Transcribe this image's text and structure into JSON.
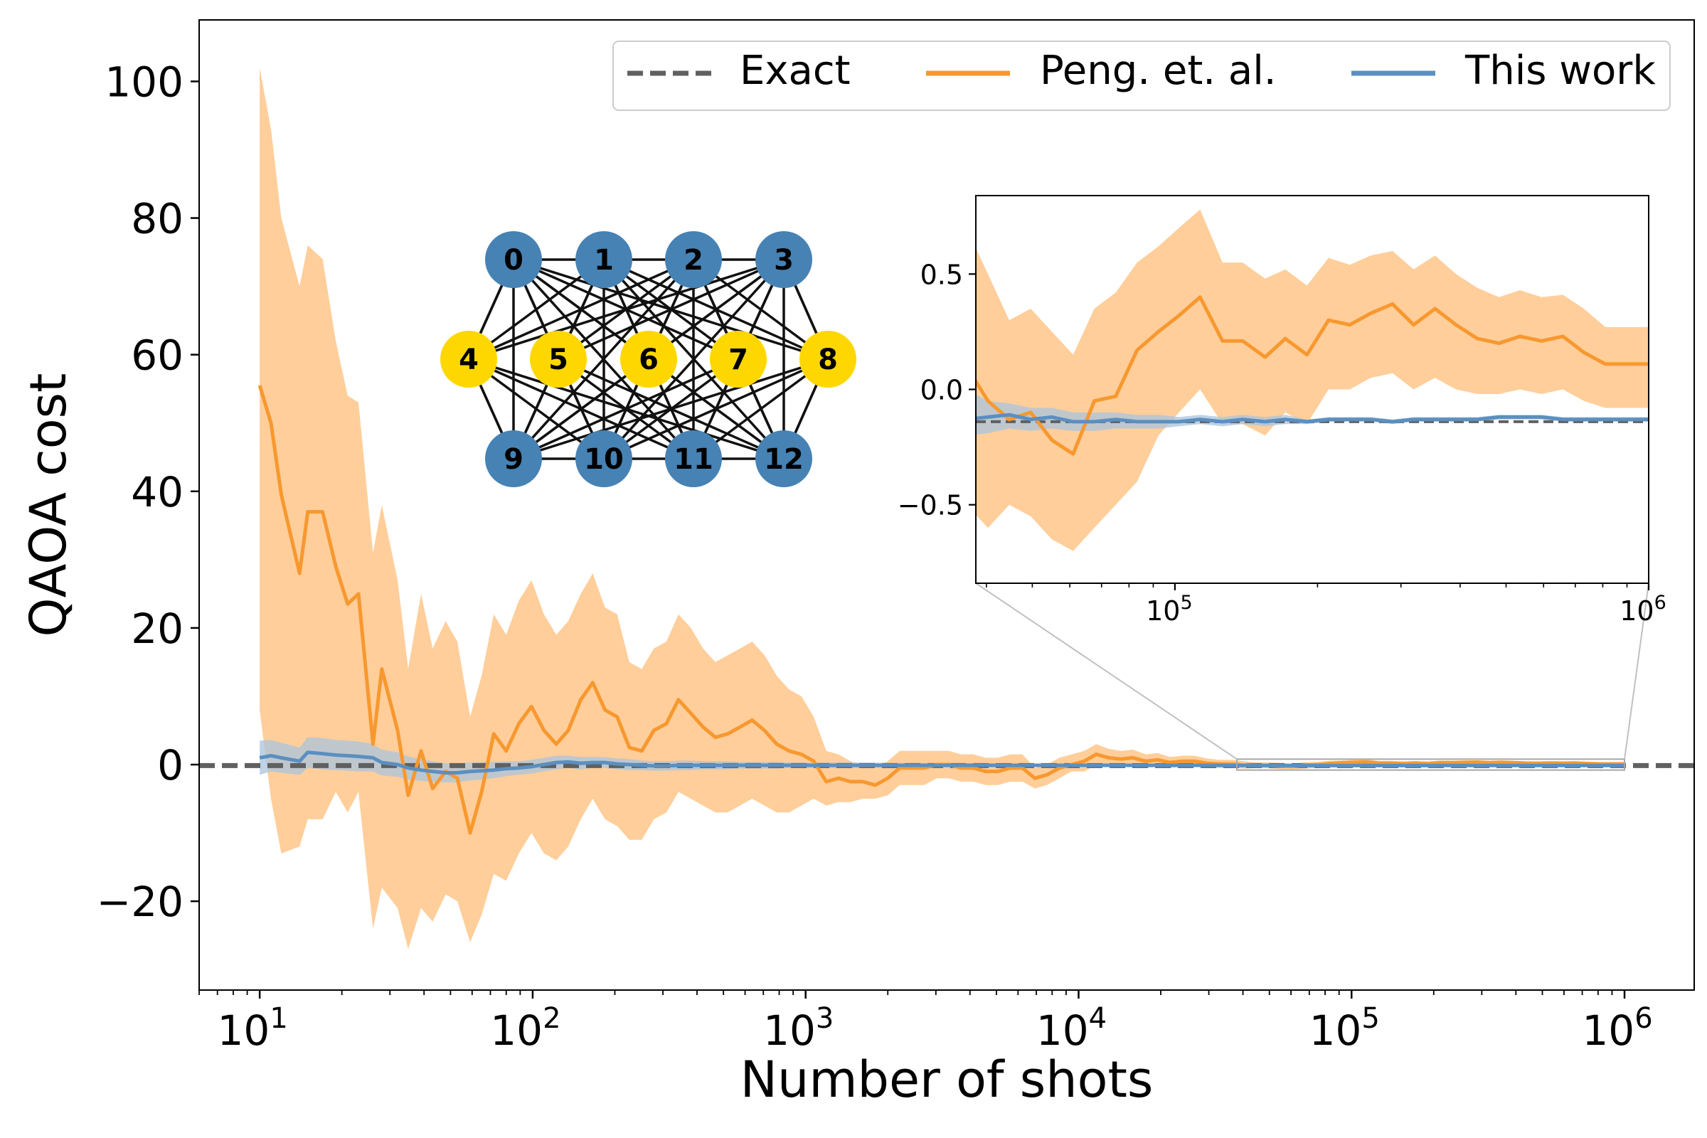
{
  "chart_data": {
    "type": "line",
    "xscale": "log",
    "xlabel": "Number of shots",
    "ylabel": "QAOA cost",
    "xlim": [
      6,
      1800000
    ],
    "ylim": [
      -33,
      109
    ],
    "yticks": [
      -20,
      0,
      20,
      40,
      60,
      80,
      100
    ],
    "ytick_labels": [
      "−20",
      "0",
      "20",
      "40",
      "60",
      "80",
      "100"
    ],
    "xticks_major": [
      {
        "value": 10,
        "base": "10",
        "exp": "1"
      },
      {
        "value": 100,
        "base": "10",
        "exp": "2"
      },
      {
        "value": 1000,
        "base": "10",
        "exp": "3"
      },
      {
        "value": 10000,
        "base": "10",
        "exp": "4"
      },
      {
        "value": 100000,
        "base": "10",
        "exp": "5"
      },
      {
        "value": 1000000,
        "base": "10",
        "exp": "6"
      }
    ],
    "legend": {
      "position": "top-right",
      "entries": [
        {
          "label": "Exact",
          "style": "dashed",
          "color": "#606060"
        },
        {
          "label": "Peng. et. al.",
          "style": "solid",
          "color": "#f7982f"
        },
        {
          "label": "This work",
          "style": "solid",
          "color": "#5b8fc0"
        }
      ]
    },
    "exact_value": -0.14,
    "series": [
      {
        "name": "Peng. et. al.",
        "color": "#f7982f",
        "band_color": "#ffc98f",
        "x": [
          10,
          11,
          12,
          14,
          15,
          17,
          19,
          21,
          23,
          26,
          28,
          32,
          35,
          39,
          43,
          48,
          53,
          59,
          65,
          72,
          80,
          89,
          99,
          110,
          122,
          135,
          150,
          166,
          184,
          204,
          226,
          251,
          278,
          309,
          342,
          380,
          421,
          467,
          518,
          575,
          637,
          707,
          784,
          870,
          965,
          1070,
          1190,
          1320,
          1460,
          1620,
          1800,
          2000,
          2210,
          2450,
          2720,
          3020,
          3350,
          3710,
          4120,
          4570,
          5060,
          5620,
          6230,
          6910,
          7660,
          8500,
          9430,
          10500,
          11600,
          12900,
          14300,
          15800,
          17600,
          19500,
          21600,
          24000,
          26600,
          29500,
          32700,
          36300,
          40300,
          44700,
          49600,
          55000,
          61000,
          67600,
          75000,
          83200,
          92300,
          102000,
          113000,
          126000,
          139000,
          155000,
          171000,
          190000,
          211000,
          234000,
          259000,
          288000,
          319000,
          354000,
          392000,
          435000,
          483000,
          535000,
          594000,
          659000,
          730000,
          810000,
          899000,
          997000
        ],
        "y": [
          55.5,
          50,
          39.5,
          28,
          37,
          37,
          29,
          23.5,
          25,
          3,
          14,
          5,
          -4.5,
          2,
          -3.5,
          -1,
          -2,
          -10,
          -4,
          4.5,
          2,
          6,
          8.5,
          5,
          3,
          5,
          9.5,
          12,
          8,
          7,
          2.5,
          2,
          5,
          6,
          9.5,
          7.5,
          5.5,
          4,
          4.5,
          5.5,
          6.5,
          5,
          3,
          2,
          1.5,
          0.5,
          -2.5,
          -2,
          -2.5,
          -2.5,
          -3,
          -2,
          -0.5,
          -0.5,
          -0.5,
          0,
          0,
          -0.5,
          -0.5,
          -1,
          -1,
          -0.5,
          -0.5,
          -2,
          -1.5,
          -0.5,
          0,
          0.5,
          1.5,
          1,
          0.8,
          1,
          0.5,
          0.7,
          0.3,
          0.5,
          0.5,
          0.2,
          0.1,
          0.1,
          -0.05,
          -0.13,
          -0.1,
          -0.22,
          -0.28,
          -0.05,
          -0.03,
          0.17,
          0.25,
          0.32,
          0.4,
          0.21,
          0.21,
          0.14,
          0.22,
          0.15,
          0.3,
          0.28,
          0.33,
          0.37,
          0.28,
          0.35,
          0.28,
          0.22,
          0.2,
          0.23,
          0.21,
          0.23,
          0.16,
          0.11,
          0.11,
          0.11
        ],
        "lower": [
          8,
          -5,
          -13,
          -12,
          -8,
          -8,
          -4,
          -7,
          -4,
          -24,
          -18,
          -21,
          -27,
          -21,
          -23,
          -19,
          -20,
          -26,
          -22,
          -16,
          -17,
          -13,
          -10,
          -13,
          -14,
          -12,
          -8,
          -5,
          -8,
          -9,
          -11,
          -11,
          -8,
          -7,
          -4,
          -5,
          -6,
          -7,
          -7,
          -6,
          -5,
          -6,
          -7,
          -7,
          -6,
          -5,
          -6,
          -5.5,
          -5.5,
          -5,
          -5,
          -4.5,
          -3,
          -3,
          -3,
          -2,
          -2,
          -2.5,
          -2.5,
          -3,
          -3,
          -2.5,
          -2.5,
          -3.5,
          -3,
          -2,
          -1,
          -1,
          0,
          -0.2,
          -0.4,
          -0.2,
          -0.5,
          -0.3,
          -0.5,
          -0.3,
          -0.3,
          -0.5,
          -0.5,
          -0.5,
          -0.6,
          -0.5,
          -0.55,
          -0.65,
          -0.7,
          -0.6,
          -0.5,
          -0.4,
          -0.2,
          -0.1,
          0,
          -0.15,
          -0.15,
          -0.2,
          -0.1,
          -0.15,
          0,
          0,
          0.05,
          0.07,
          0,
          0.05,
          0,
          -0.02,
          -0.02,
          0,
          -0.02,
          0,
          -0.05,
          -0.08,
          -0.08,
          -0.08
        ],
        "upper": [
          102,
          93,
          80,
          70,
          76,
          74,
          62,
          54,
          53,
          31,
          38,
          27,
          14,
          25,
          17,
          21,
          18,
          7,
          13,
          22,
          19,
          24,
          27,
          22,
          19,
          21,
          25,
          28,
          23,
          22,
          15,
          14,
          17,
          18,
          22,
          20,
          17,
          15,
          16,
          17,
          18,
          16,
          13,
          11,
          10,
          7,
          2,
          1.5,
          0.5,
          0,
          -0.5,
          0.5,
          2,
          2,
          2,
          2,
          2,
          1.5,
          1.5,
          1,
          1,
          1.5,
          1.5,
          -0.5,
          0,
          1,
          1.5,
          2,
          3,
          2.3,
          2,
          2.2,
          1.5,
          1.7,
          1.1,
          1.3,
          1.3,
          0.9,
          0.7,
          0.7,
          0.5,
          0.3,
          0.35,
          0.25,
          0.15,
          0.35,
          0.42,
          0.55,
          0.62,
          0.7,
          0.78,
          0.55,
          0.55,
          0.48,
          0.52,
          0.45,
          0.57,
          0.54,
          0.58,
          0.6,
          0.52,
          0.58,
          0.5,
          0.44,
          0.4,
          0.43,
          0.4,
          0.41,
          0.35,
          0.27,
          0.27,
          0.27
        ]
      },
      {
        "name": "This work",
        "color": "#5b8fc0",
        "band_color": "#a9c4de",
        "x": [
          10,
          11,
          12,
          14,
          15,
          17,
          19,
          21,
          23,
          26,
          28,
          32,
          35,
          39,
          43,
          48,
          53,
          59,
          65,
          72,
          80,
          89,
          99,
          110,
          122,
          135,
          150,
          166,
          184,
          204,
          226,
          251,
          278,
          309,
          342,
          380,
          421,
          467,
          518,
          575,
          637,
          707,
          784,
          870,
          965,
          1070,
          1190,
          1320,
          1460,
          1620,
          1800,
          2000,
          2210,
          2450,
          2720,
          3020,
          3350,
          3710,
          4120,
          4570,
          5060,
          5620,
          6230,
          6910,
          7660,
          8500,
          9430,
          10500,
          11600,
          12900,
          14300,
          15800,
          17600,
          19500,
          21600,
          24000,
          26600,
          29500,
          32700,
          36300,
          40300,
          44700,
          49600,
          55000,
          61000,
          67600,
          75000,
          83200,
          92300,
          102000,
          113000,
          126000,
          139000,
          155000,
          171000,
          190000,
          211000,
          234000,
          259000,
          288000,
          319000,
          354000,
          392000,
          435000,
          483000,
          535000,
          594000,
          659000,
          730000,
          810000,
          899000,
          997000
        ],
        "y": [
          1,
          1.3,
          1,
          0.5,
          1.8,
          1.6,
          1.4,
          1.3,
          1.2,
          1,
          0.3,
          0,
          -0.5,
          -0.8,
          -1,
          -1.2,
          -1.2,
          -1,
          -0.9,
          -0.8,
          -0.6,
          -0.5,
          -0.3,
          0,
          0.3,
          0.4,
          0.2,
          0.3,
          0.3,
          0.1,
          0,
          -0.1,
          -0.2,
          -0.2,
          -0.1,
          -0.1,
          -0.1,
          -0.1,
          -0.1,
          -0.1,
          -0.1,
          -0.1,
          -0.1,
          -0.1,
          -0.1,
          -0.1,
          -0.1,
          -0.1,
          -0.1,
          -0.1,
          -0.1,
          -0.1,
          -0.1,
          -0.1,
          -0.1,
          -0.1,
          -0.1,
          -0.1,
          -0.1,
          -0.1,
          -0.1,
          -0.1,
          -0.1,
          -0.1,
          -0.1,
          -0.1,
          -0.1,
          -0.1,
          -0.1,
          -0.1,
          -0.1,
          -0.1,
          -0.1,
          -0.1,
          -0.1,
          -0.1,
          -0.1,
          -0.1,
          -0.1,
          -0.13,
          -0.12,
          -0.11,
          -0.13,
          -0.12,
          -0.14,
          -0.14,
          -0.13,
          -0.14,
          -0.14,
          -0.14,
          -0.13,
          -0.14,
          -0.13,
          -0.14,
          -0.13,
          -0.14,
          -0.13,
          -0.13,
          -0.13,
          -0.14,
          -0.13,
          -0.13,
          -0.13,
          -0.13,
          -0.12,
          -0.12,
          -0.12,
          -0.13,
          -0.13,
          -0.13,
          -0.13,
          -0.13
        ],
        "lower": [
          -1.5,
          -1,
          -1.2,
          -1.5,
          -0.5,
          -0.7,
          -0.8,
          -0.9,
          -1,
          -1,
          -1.6,
          -1.8,
          -2.2,
          -2.4,
          -2.5,
          -2.6,
          -2.6,
          -2.3,
          -2.2,
          -2,
          -1.7,
          -1.5,
          -1.3,
          -1,
          -0.7,
          -0.5,
          -0.7,
          -0.5,
          -0.5,
          -0.7,
          -0.8,
          -0.8,
          -0.9,
          -0.9,
          -0.8,
          -0.8,
          -0.7,
          -0.7,
          -0.7,
          -0.6,
          -0.6,
          -0.6,
          -0.6,
          -0.5,
          -0.5,
          -0.5,
          -0.5,
          -0.5,
          -0.5,
          -0.5,
          -0.5,
          -0.45,
          -0.45,
          -0.45,
          -0.45,
          -0.4,
          -0.4,
          -0.4,
          -0.4,
          -0.4,
          -0.35,
          -0.35,
          -0.35,
          -0.35,
          -0.35,
          -0.3,
          -0.3,
          -0.3,
          -0.3,
          -0.3,
          -0.3,
          -0.25,
          -0.25,
          -0.25,
          -0.25,
          -0.25,
          -0.2,
          -0.2,
          -0.2,
          -0.2,
          -0.19,
          -0.17,
          -0.18,
          -0.17,
          -0.18,
          -0.18,
          -0.17,
          -0.17,
          -0.17,
          -0.16,
          -0.15,
          -0.16,
          -0.15,
          -0.16,
          -0.15,
          -0.15,
          -0.14,
          -0.14,
          -0.14,
          -0.15,
          -0.14,
          -0.14,
          -0.14,
          -0.14,
          -0.13,
          -0.13,
          -0.13,
          -0.14,
          -0.14,
          -0.14,
          -0.14,
          -0.14
        ],
        "upper": [
          3.5,
          3.6,
          3.2,
          2.5,
          4,
          3.9,
          3.6,
          3.5,
          3.4,
          3,
          2.2,
          1.8,
          1.2,
          0.8,
          0.5,
          0.2,
          0.2,
          0.3,
          0.4,
          0.4,
          0.5,
          0.5,
          0.7,
          1,
          1.3,
          1.3,
          1.1,
          1.1,
          1.1,
          0.9,
          0.8,
          0.6,
          0.5,
          0.5,
          0.6,
          0.6,
          0.5,
          0.5,
          0.5,
          0.4,
          0.4,
          0.4,
          0.4,
          0.3,
          0.3,
          0.3,
          0.3,
          0.3,
          0.3,
          0.3,
          0.3,
          0.25,
          0.25,
          0.25,
          0.25,
          0.2,
          0.2,
          0.2,
          0.2,
          0.2,
          0.15,
          0.15,
          0.15,
          0.15,
          0.15,
          0.1,
          0.1,
          0.1,
          0.1,
          0.1,
          0.1,
          0.05,
          0.05,
          0.05,
          0.05,
          0.05,
          0.03,
          0.03,
          0,
          0,
          -0.05,
          -0.06,
          -0.08,
          -0.08,
          -0.1,
          -0.1,
          -0.1,
          -0.11,
          -0.11,
          -0.12,
          -0.11,
          -0.12,
          -0.11,
          -0.12,
          -0.11,
          -0.13,
          -0.12,
          -0.12,
          -0.12,
          -0.13,
          -0.12,
          -0.12,
          -0.12,
          -0.12,
          -0.11,
          -0.11,
          -0.11,
          -0.12,
          -0.12,
          -0.12,
          -0.12,
          -0.12
        ]
      }
    ],
    "inset": {
      "xlim": [
        38000,
        1000000
      ],
      "ylim": [
        -0.84,
        0.84
      ],
      "yticks": [
        -0.5,
        0.0,
        0.5
      ],
      "ytick_labels": [
        "−0.5",
        "0.0",
        "0.5"
      ],
      "xticks_major": [
        {
          "value": 100000,
          "base": "10",
          "exp": "5"
        },
        {
          "value": 1000000,
          "base": "10",
          "exp": "6"
        }
      ],
      "zoom_box_y": [
        -0.8,
        0.8
      ]
    },
    "graph": {
      "nodes": [
        {
          "id": "0",
          "color": "#4682b4"
        },
        {
          "id": "1",
          "color": "#4682b4"
        },
        {
          "id": "2",
          "color": "#4682b4"
        },
        {
          "id": "3",
          "color": "#4682b4"
        },
        {
          "id": "4",
          "color": "#ffd700"
        },
        {
          "id": "5",
          "color": "#ffd700"
        },
        {
          "id": "6",
          "color": "#ffd700"
        },
        {
          "id": "7",
          "color": "#ffd700"
        },
        {
          "id": "8",
          "color": "#ffd700"
        },
        {
          "id": "9",
          "color": "#4682b4"
        },
        {
          "id": "10",
          "color": "#4682b4"
        },
        {
          "id": "11",
          "color": "#4682b4"
        },
        {
          "id": "12",
          "color": "#4682b4"
        }
      ]
    }
  }
}
